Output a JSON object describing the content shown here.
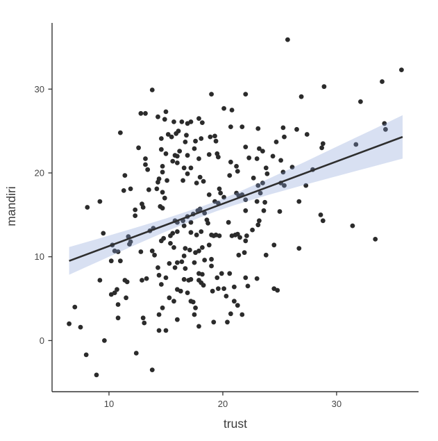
{
  "chart_data": {
    "type": "scatter",
    "title": "",
    "xlabel": "trust",
    "ylabel": "mandiri",
    "xlim": [
      5.0,
      37.2
    ],
    "ylim": [
      -6.1,
      37.9
    ],
    "xticks": [
      10,
      20,
      30
    ],
    "yticks": [
      0,
      10,
      20,
      30
    ],
    "grid": false,
    "legend": "none",
    "colors": {
      "point": "#2b2b2b",
      "line": "#2e2e2e",
      "ribbon": "#87a0d7",
      "ribbon_opacity": 0.32,
      "axis": "#333333",
      "tick_label": "#444444",
      "axis_title": "#3a3a3a",
      "background": "#ffffff"
    },
    "point_radius": 3.4,
    "regression_line": {
      "x": [
        6.5,
        35.8
      ],
      "y": [
        9.5,
        24.3
      ]
    },
    "ci_ribbon": {
      "x": [
        6.5,
        9.0,
        12.0,
        15.0,
        18.0,
        19.5,
        21.0,
        24.0,
        27.0,
        30.0,
        33.0,
        35.8
      ],
      "upper": [
        11.15,
        12.13,
        13.33,
        14.57,
        15.92,
        16.67,
        17.49,
        19.3,
        21.19,
        23.13,
        25.06,
        26.89
      ],
      "lower": [
        7.85,
        9.39,
        11.23,
        13.01,
        14.7,
        15.47,
        16.15,
        17.38,
        18.51,
        19.61,
        20.7,
        21.71
      ]
    },
    "points": [
      [
        13.8,
        29.9
      ],
      [
        12.8,
        27.1
      ],
      [
        13.2,
        27.1
      ],
      [
        14.3,
        26.7
      ],
      [
        15.0,
        27.3
      ],
      [
        14.9,
        26.4
      ],
      [
        15.7,
        26.1
      ],
      [
        11.0,
        24.8
      ],
      [
        14.6,
        24.1
      ],
      [
        15.2,
        24.6
      ],
      [
        15.5,
        24.3
      ],
      [
        15.9,
        24.7
      ],
      [
        25.7,
        35.9
      ],
      [
        19.0,
        29.4
      ],
      [
        22.0,
        29.4
      ],
      [
        26.9,
        29.1
      ],
      [
        20.1,
        27.7
      ],
      [
        20.8,
        27.5
      ],
      [
        16.4,
        26.1
      ],
      [
        16.9,
        25.9
      ],
      [
        17.2,
        26.1
      ],
      [
        17.9,
        26.5
      ],
      [
        18.2,
        26.0
      ],
      [
        16.1,
        25.0
      ],
      [
        16.8,
        24.5
      ],
      [
        16.7,
        23.7
      ],
      [
        17.6,
        23.8
      ],
      [
        18.1,
        24.1
      ],
      [
        18.9,
        24.3
      ],
      [
        19.3,
        24.4
      ],
      [
        19.4,
        23.8
      ],
      [
        20.7,
        25.5
      ],
      [
        21.7,
        25.5
      ],
      [
        23.1,
        25.3
      ],
      [
        24.7,
        23.7
      ],
      [
        25.3,
        25.4
      ],
      [
        25.4,
        24.3
      ],
      [
        26.5,
        25.2
      ],
      [
        35.7,
        32.3
      ],
      [
        28.9,
        30.3
      ],
      [
        34.0,
        30.9
      ],
      [
        32.1,
        28.5
      ],
      [
        27.4,
        24.6
      ],
      [
        28.8,
        23.5
      ],
      [
        34.2,
        25.9
      ],
      [
        34.3,
        25.2
      ],
      [
        31.7,
        23.4
      ],
      [
        28.7,
        23.0
      ],
      [
        27.9,
        20.4
      ],
      [
        27.3,
        18.5
      ],
      [
        28.6,
        15.0
      ],
      [
        28.8,
        14.3
      ],
      [
        31.4,
        13.7
      ],
      [
        33.4,
        12.1
      ],
      [
        12.6,
        23.0
      ],
      [
        14.6,
        22.8
      ],
      [
        15.0,
        22.3
      ],
      [
        13.2,
        21.7
      ],
      [
        15.8,
        22.1
      ],
      [
        15.6,
        21.4
      ],
      [
        13.2,
        21.0
      ],
      [
        13.4,
        20.4
      ],
      [
        14.7,
        20.8
      ],
      [
        14.7,
        20.1
      ],
      [
        11.4,
        19.7
      ],
      [
        14.4,
        19.3
      ],
      [
        14.3,
        18.9
      ],
      [
        15.1,
        19.1
      ],
      [
        11.3,
        17.9
      ],
      [
        11.9,
        18.1
      ],
      [
        13.5,
        18.0
      ],
      [
        14.2,
        18.1
      ],
      [
        14.7,
        17.7
      ],
      [
        9.2,
        16.6
      ],
      [
        8.1,
        15.9
      ],
      [
        14.9,
        17.0
      ],
      [
        14.5,
        16.0
      ],
      [
        14.7,
        15.8
      ],
      [
        12.3,
        15.6
      ],
      [
        12.9,
        16.3
      ],
      [
        13.0,
        15.9
      ],
      [
        12.3,
        14.9
      ],
      [
        13.6,
        13.1
      ],
      [
        13.9,
        13.4
      ],
      [
        9.5,
        12.8
      ],
      [
        11.7,
        12.4
      ],
      [
        11.8,
        11.5
      ],
      [
        11.9,
        11.8
      ],
      [
        10.3,
        11.4
      ],
      [
        10.5,
        10.7
      ],
      [
        10.8,
        10.6
      ],
      [
        12.8,
        10.6
      ],
      [
        10.2,
        9.5
      ],
      [
        11.0,
        9.5
      ],
      [
        13.8,
        10.7
      ],
      [
        14.0,
        10.2
      ],
      [
        14.6,
        11.9
      ],
      [
        14.8,
        12.2
      ],
      [
        15.4,
        12.5
      ],
      [
        15.6,
        12.8
      ],
      [
        15.4,
        11.6
      ],
      [
        15.7,
        11.1
      ],
      [
        15.8,
        14.3
      ],
      [
        16.0,
        13.0
      ],
      [
        15.3,
        9.2
      ],
      [
        14.3,
        8.7
      ],
      [
        15.8,
        8.7
      ],
      [
        16.2,
        22.6
      ],
      [
        16.9,
        22.1
      ],
      [
        17.5,
        22.9
      ],
      [
        17.9,
        21.7
      ],
      [
        18.8,
        22.2
      ],
      [
        19.5,
        22.3
      ],
      [
        19.6,
        21.9
      ],
      [
        22.0,
        23.1
      ],
      [
        23.2,
        22.9
      ],
      [
        23.5,
        22.6
      ],
      [
        22.3,
        21.8
      ],
      [
        24.4,
        22.0
      ],
      [
        16.0,
        22.0
      ],
      [
        16.0,
        21.2
      ],
      [
        16.6,
        20.6
      ],
      [
        17.2,
        20.6
      ],
      [
        16.9,
        19.9
      ],
      [
        16.5,
        19.1
      ],
      [
        18.0,
        19.5
      ],
      [
        18.3,
        19.0
      ],
      [
        17.7,
        18.8
      ],
      [
        20.7,
        21.3
      ],
      [
        21.2,
        20.8
      ],
      [
        21.3,
        20.2
      ],
      [
        20.6,
        19.7
      ],
      [
        22.7,
        19.4
      ],
      [
        23.8,
        20.6
      ],
      [
        23.9,
        19.9
      ],
      [
        25.1,
        21.5
      ],
      [
        25.3,
        20.1
      ],
      [
        26.1,
        20.7
      ],
      [
        25.1,
        18.8
      ],
      [
        25.4,
        18.5
      ],
      [
        23.5,
        18.8
      ],
      [
        23.1,
        18.5
      ],
      [
        19.7,
        18.1
      ],
      [
        19.8,
        17.6
      ],
      [
        20.1,
        17.1
      ],
      [
        21.2,
        17.6
      ],
      [
        21.4,
        17.3
      ],
      [
        21.7,
        17.4
      ],
      [
        22.0,
        16.8
      ],
      [
        23.3,
        17.6
      ],
      [
        19.3,
        16.6
      ],
      [
        19.6,
        16.4
      ],
      [
        18.8,
        17.4
      ],
      [
        18.4,
        15.2
      ],
      [
        17.8,
        15.5
      ],
      [
        18.0,
        15.7
      ],
      [
        17.4,
        15.1
      ],
      [
        16.9,
        14.8
      ],
      [
        16.5,
        14.3
      ],
      [
        16.0,
        14.1
      ],
      [
        16.6,
        13.7
      ],
      [
        17.2,
        14.1
      ],
      [
        22.0,
        15.5
      ],
      [
        23.0,
        16.6
      ],
      [
        23.7,
        16.5
      ],
      [
        18.6,
        14.4
      ],
      [
        18.7,
        14.0
      ],
      [
        18.1,
        13.0
      ],
      [
        17.2,
        12.9
      ],
      [
        17.7,
        12.6
      ],
      [
        17.1,
        10.8
      ],
      [
        16.7,
        11.0
      ],
      [
        16.6,
        10.1
      ],
      [
        17.6,
        10.5
      ],
      [
        17.9,
        10.7
      ],
      [
        18.2,
        11.1
      ],
      [
        19.0,
        12.6
      ],
      [
        19.2,
        12.5
      ],
      [
        19.4,
        12.6
      ],
      [
        19.7,
        12.5
      ],
      [
        18.8,
        11.4
      ],
      [
        19.0,
        9.7
      ],
      [
        18.4,
        9.6
      ],
      [
        20.5,
        14.1
      ],
      [
        20.8,
        12.5
      ],
      [
        21.1,
        12.6
      ],
      [
        21.3,
        12.7
      ],
      [
        21.5,
        12.3
      ],
      [
        22.1,
        12.5
      ],
      [
        22.0,
        11.9
      ],
      [
        22.6,
        13.2
      ],
      [
        23.1,
        13.8
      ],
      [
        23.2,
        14.3
      ],
      [
        21.4,
        10.2
      ],
      [
        21.9,
        10.5
      ],
      [
        24.5,
        11.4
      ],
      [
        23.8,
        10.2
      ],
      [
        26.7,
        16.6
      ],
      [
        26.7,
        11.0
      ],
      [
        16.0,
        9.3
      ],
      [
        16.4,
        9.4
      ],
      [
        17.5,
        9.3
      ],
      [
        19.0,
        8.9
      ],
      [
        16.7,
        8.6
      ],
      [
        23.0,
        21.7
      ],
      [
        23.6,
        15.5
      ],
      [
        25.0,
        15.4
      ],
      [
        9.2,
        7.2
      ],
      [
        11.4,
        7.2
      ],
      [
        11.6,
        7.0
      ],
      [
        12.9,
        7.2
      ],
      [
        13.3,
        7.4
      ],
      [
        14.4,
        7.8
      ],
      [
        15.0,
        7.5
      ],
      [
        14.6,
        6.7
      ],
      [
        10.2,
        5.5
      ],
      [
        10.5,
        5.7
      ],
      [
        10.7,
        6.1
      ],
      [
        11.5,
        5.1
      ],
      [
        10.8,
        4.3
      ],
      [
        7.0,
        4.0
      ],
      [
        15.3,
        5.1
      ],
      [
        15.7,
        4.7
      ],
      [
        10.8,
        2.7
      ],
      [
        13.0,
        2.7
      ],
      [
        13.1,
        2.1
      ],
      [
        6.5,
        2.0
      ],
      [
        7.5,
        1.6
      ],
      [
        14.4,
        3.1
      ],
      [
        14.7,
        3.9
      ],
      [
        16.0,
        2.5
      ],
      [
        14.4,
        1.2
      ],
      [
        15.0,
        1.2
      ],
      [
        9.6,
        0.0
      ],
      [
        8.0,
        -1.7
      ],
      [
        12.4,
        -1.5
      ],
      [
        13.8,
        -3.5
      ],
      [
        8.9,
        -4.1
      ],
      [
        17.9,
        8.0
      ],
      [
        18.2,
        7.9
      ],
      [
        16.6,
        7.3
      ],
      [
        17.0,
        7.2
      ],
      [
        17.2,
        7.3
      ],
      [
        17.9,
        7.2
      ],
      [
        18.1,
        6.9
      ],
      [
        18.3,
        6.6
      ],
      [
        19.5,
        7.5
      ],
      [
        19.9,
        8.0
      ],
      [
        20.6,
        8.0
      ],
      [
        22.0,
        7.5
      ],
      [
        23.0,
        7.4
      ],
      [
        22.2,
        6.5
      ],
      [
        16.0,
        6.1
      ],
      [
        16.3,
        5.9
      ],
      [
        16.9,
        5.7
      ],
      [
        19.1,
        5.9
      ],
      [
        19.6,
        6.2
      ],
      [
        20.1,
        6.2
      ],
      [
        21.0,
        6.4
      ],
      [
        20.3,
        5.3
      ],
      [
        17.2,
        4.7
      ],
      [
        17.4,
        4.6
      ],
      [
        17.6,
        3.9
      ],
      [
        21.0,
        4.7
      ],
      [
        21.3,
        4.2
      ],
      [
        17.5,
        3.1
      ],
      [
        20.7,
        3.2
      ],
      [
        21.7,
        3.1
      ],
      [
        17.9,
        1.7
      ],
      [
        19.2,
        2.2
      ],
      [
        20.4,
        2.2
      ],
      [
        24.5,
        6.2
      ],
      [
        24.8,
        6.0
      ]
    ]
  }
}
